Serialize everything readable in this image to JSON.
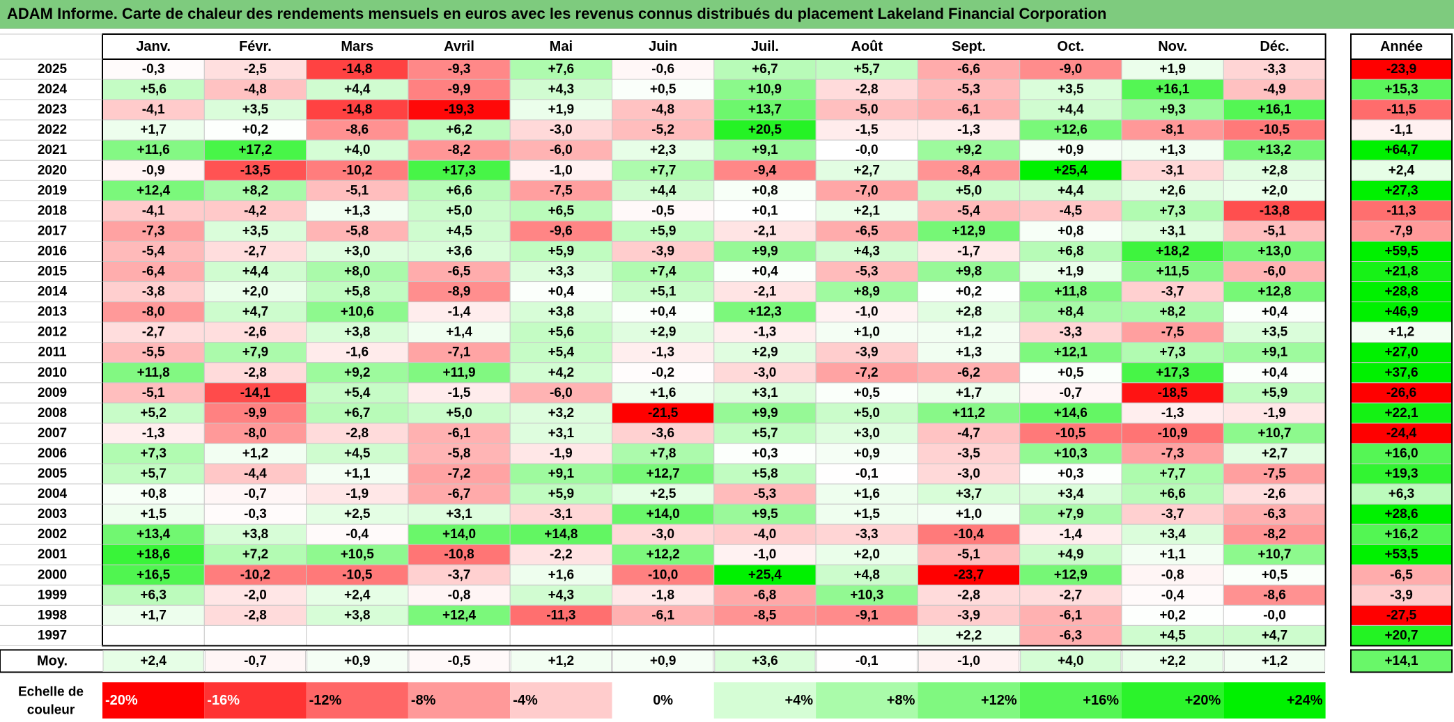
{
  "title": "ADAM Informe. Carte de chaleur des rendements mensuels en euros avec les revenus connus distribués du placement Lakeland Financial Corporation",
  "chart_data": {
    "type": "heatmap",
    "title": "ADAM Informe. Carte de chaleur des rendements mensuels en euros avec les revenus connus distribués du placement Lakeland Financial Corporation",
    "months": [
      "Janv.",
      "Févr.",
      "Mars",
      "Avril",
      "Mai",
      "Juin",
      "Juil.",
      "Août",
      "Sept.",
      "Oct.",
      "Nov.",
      "Déc."
    ],
    "year_header": "Année",
    "rows": [
      {
        "year": "2025",
        "values": [
          "-0,3",
          "-2,5",
          "-14,8",
          "-9,3",
          "+7,6",
          "-0,6",
          "+6,7",
          "+5,7",
          "-6,6",
          "-9,0",
          "+1,9",
          "-3,3"
        ],
        "annual": "-23,9"
      },
      {
        "year": "2024",
        "values": [
          "+5,6",
          "-4,8",
          "+4,4",
          "-9,9",
          "+4,3",
          "+0,5",
          "+10,9",
          "-2,8",
          "-5,3",
          "+3,5",
          "+16,1",
          "-4,9"
        ],
        "annual": "+15,3"
      },
      {
        "year": "2023",
        "values": [
          "-4,1",
          "+3,5",
          "-14,8",
          "-19,3",
          "+1,9",
          "-4,8",
          "+13,7",
          "-5,0",
          "-6,1",
          "+4,4",
          "+9,3",
          "+16,1"
        ],
        "annual": "-11,5"
      },
      {
        "year": "2022",
        "values": [
          "+1,7",
          "+0,2",
          "-8,6",
          "+6,2",
          "-3,0",
          "-5,2",
          "+20,5",
          "-1,5",
          "-1,3",
          "+12,6",
          "-8,1",
          "-10,5"
        ],
        "annual": "-1,1"
      },
      {
        "year": "2021",
        "values": [
          "+11,6",
          "+17,2",
          "+4,0",
          "-8,2",
          "-6,0",
          "+2,3",
          "+9,1",
          "-0,0",
          "+9,2",
          "+0,9",
          "+1,3",
          "+13,2"
        ],
        "annual": "+64,7"
      },
      {
        "year": "2020",
        "values": [
          "-0,9",
          "-13,5",
          "-10,2",
          "+17,3",
          "-1,0",
          "+7,7",
          "-9,4",
          "+2,7",
          "-8,4",
          "+25,4",
          "-3,1",
          "+2,8"
        ],
        "annual": "+2,4"
      },
      {
        "year": "2019",
        "values": [
          "+12,4",
          "+8,2",
          "-5,1",
          "+6,6",
          "-7,5",
          "+4,4",
          "+0,8",
          "-7,0",
          "+5,0",
          "+4,4",
          "+2,6",
          "+2,0"
        ],
        "annual": "+27,3"
      },
      {
        "year": "2018",
        "values": [
          "-4,1",
          "-4,2",
          "+1,3",
          "+5,0",
          "+6,5",
          "-0,5",
          "+0,1",
          "+2,1",
          "-5,4",
          "-4,5",
          "+7,3",
          "-13,8"
        ],
        "annual": "-11,3"
      },
      {
        "year": "2017",
        "values": [
          "-7,3",
          "+3,5",
          "-5,8",
          "+4,5",
          "-9,6",
          "+5,9",
          "-2,1",
          "-6,5",
          "+12,9",
          "+0,8",
          "+3,1",
          "-5,1"
        ],
        "annual": "-7,9"
      },
      {
        "year": "2016",
        "values": [
          "-5,4",
          "-2,7",
          "+3,0",
          "+3,6",
          "+5,9",
          "-3,9",
          "+9,9",
          "+4,3",
          "-1,7",
          "+6,8",
          "+18,2",
          "+13,0"
        ],
        "annual": "+59,5"
      },
      {
        "year": "2015",
        "values": [
          "-6,4",
          "+4,4",
          "+8,0",
          "-6,5",
          "+3,3",
          "+7,4",
          "+0,4",
          "-5,3",
          "+9,8",
          "+1,9",
          "+11,5",
          "-6,0"
        ],
        "annual": "+21,8"
      },
      {
        "year": "2014",
        "values": [
          "-3,8",
          "+2,0",
          "+5,8",
          "-8,9",
          "+0,4",
          "+5,1",
          "-2,1",
          "+8,9",
          "+0,2",
          "+11,8",
          "-3,7",
          "+12,8"
        ],
        "annual": "+28,8"
      },
      {
        "year": "2013",
        "values": [
          "-8,0",
          "+4,7",
          "+10,6",
          "-1,4",
          "+3,8",
          "+0,4",
          "+12,3",
          "-1,0",
          "+2,8",
          "+8,4",
          "+8,2",
          "+0,4"
        ],
        "annual": "+46,9"
      },
      {
        "year": "2012",
        "values": [
          "-2,7",
          "-2,6",
          "+3,8",
          "+1,4",
          "+5,6",
          "+2,9",
          "-1,3",
          "+1,0",
          "+1,2",
          "-3,3",
          "-7,5",
          "+3,5"
        ],
        "annual": "+1,2"
      },
      {
        "year": "2011",
        "values": [
          "-5,5",
          "+7,9",
          "-1,6",
          "-7,1",
          "+5,4",
          "-1,3",
          "+2,9",
          "-3,9",
          "+1,3",
          "+12,1",
          "+7,3",
          "+9,1"
        ],
        "annual": "+27,0"
      },
      {
        "year": "2010",
        "values": [
          "+11,8",
          "-2,8",
          "+9,2",
          "+11,9",
          "+4,2",
          "-0,2",
          "-3,0",
          "-7,2",
          "-6,2",
          "+0,5",
          "+17,3",
          "+0,4"
        ],
        "annual": "+37,6"
      },
      {
        "year": "2009",
        "values": [
          "-5,1",
          "-14,1",
          "+5,4",
          "-1,5",
          "-6,0",
          "+1,6",
          "+3,1",
          "+0,5",
          "+1,7",
          "-0,7",
          "-18,5",
          "+5,9"
        ],
        "annual": "-26,6"
      },
      {
        "year": "2008",
        "values": [
          "+5,2",
          "-9,9",
          "+6,7",
          "+5,0",
          "+3,2",
          "-21,5",
          "+9,9",
          "+5,0",
          "+11,2",
          "+14,6",
          "-1,3",
          "-1,9"
        ],
        "annual": "+22,1"
      },
      {
        "year": "2007",
        "values": [
          "-1,3",
          "-8,0",
          "-2,8",
          "-6,1",
          "+3,1",
          "-3,6",
          "+5,7",
          "+3,0",
          "-4,7",
          "-10,5",
          "-10,9",
          "+10,7"
        ],
        "annual": "-24,4"
      },
      {
        "year": "2006",
        "values": [
          "+7,3",
          "+1,2",
          "+4,5",
          "-5,8",
          "-1,9",
          "+7,8",
          "+0,3",
          "+0,9",
          "-3,5",
          "+10,3",
          "-7,3",
          "+2,7"
        ],
        "annual": "+16,0"
      },
      {
        "year": "2005",
        "values": [
          "+5,7",
          "-4,4",
          "+1,1",
          "-7,2",
          "+9,1",
          "+12,7",
          "+5,8",
          "-0,1",
          "-3,0",
          "+0,3",
          "+7,7",
          "-7,5"
        ],
        "annual": "+19,3"
      },
      {
        "year": "2004",
        "values": [
          "+0,8",
          "-0,7",
          "-1,9",
          "-6,7",
          "+5,9",
          "+2,5",
          "-5,3",
          "+1,6",
          "+3,7",
          "+3,4",
          "+6,6",
          "-2,6"
        ],
        "annual": "+6,3"
      },
      {
        "year": "2003",
        "values": [
          "+1,5",
          "-0,3",
          "+2,5",
          "+3,1",
          "-3,1",
          "+14,0",
          "+9,5",
          "+1,5",
          "+1,0",
          "+7,9",
          "-3,7",
          "-6,3"
        ],
        "annual": "+28,6"
      },
      {
        "year": "2002",
        "values": [
          "+13,4",
          "+3,8",
          "-0,4",
          "+14,0",
          "+14,8",
          "-3,0",
          "-4,0",
          "-3,3",
          "-10,4",
          "-1,4",
          "+3,4",
          "-8,2"
        ],
        "annual": "+16,2"
      },
      {
        "year": "2001",
        "values": [
          "+18,6",
          "+7,2",
          "+10,5",
          "-10,8",
          "-2,2",
          "+12,2",
          "-1,0",
          "+2,0",
          "-5,1",
          "+4,9",
          "+1,1",
          "+10,7"
        ],
        "annual": "+53,5"
      },
      {
        "year": "2000",
        "values": [
          "+16,5",
          "-10,2",
          "-10,5",
          "-3,7",
          "+1,6",
          "-10,0",
          "+25,4",
          "+4,8",
          "-23,7",
          "+12,9",
          "-0,8",
          "+0,5"
        ],
        "annual": "-6,5"
      },
      {
        "year": "1999",
        "values": [
          "+6,3",
          "-2,0",
          "+2,4",
          "-0,8",
          "+4,3",
          "-1,8",
          "-6,8",
          "+10,3",
          "-2,8",
          "-2,7",
          "-0,4",
          "-8,6"
        ],
        "annual": "-3,9"
      },
      {
        "year": "1998",
        "values": [
          "+1,7",
          "-2,8",
          "+3,8",
          "+12,4",
          "-11,3",
          "-6,1",
          "-8,5",
          "-9,1",
          "-3,9",
          "-6,1",
          "+0,2",
          "-0,0"
        ],
        "annual": "-27,5"
      },
      {
        "year": "1997",
        "values": [
          "",
          "",
          "",
          "",
          "",
          "",
          "",
          "",
          "+2,2",
          "-6,3",
          "+4,5",
          "+4,7"
        ],
        "annual": "+20,7"
      }
    ],
    "average": {
      "label": "Moy.",
      "values": [
        "+2,4",
        "-0,7",
        "+0,9",
        "-0,5",
        "+1,2",
        "+0,9",
        "+3,6",
        "-0,1",
        "-1,0",
        "+4,0",
        "+2,2",
        "+1,2"
      ],
      "annual": "+14,1"
    },
    "scale": {
      "label_line1": "Echelle de",
      "label_line2": "couleur",
      "items": [
        {
          "label": "-20%",
          "value": -20,
          "color": "#ff0000"
        },
        {
          "label": "-16%",
          "value": -16,
          "color": "#ff3333"
        },
        {
          "label": "-12%",
          "value": -12,
          "color": "#ff6666"
        },
        {
          "label": "-8%",
          "value": -8,
          "color": "#ff9999"
        },
        {
          "label": "-4%",
          "value": -4,
          "color": "#ffcccc"
        },
        {
          "label": "0%",
          "value": 0,
          "color": "#ffffff"
        },
        {
          "label": "+4%",
          "value": 4,
          "color": "#d5fdd5"
        },
        {
          "label": "+8%",
          "value": 8,
          "color": "#aafbaa"
        },
        {
          "label": "+12%",
          "value": 12,
          "color": "#80f880"
        },
        {
          "label": "+16%",
          "value": 16,
          "color": "#55f655"
        },
        {
          "label": "+20%",
          "value": 20,
          "color": "#2bf32b"
        },
        {
          "label": "+24%",
          "value": 24,
          "color": "#00f100"
        }
      ]
    }
  }
}
